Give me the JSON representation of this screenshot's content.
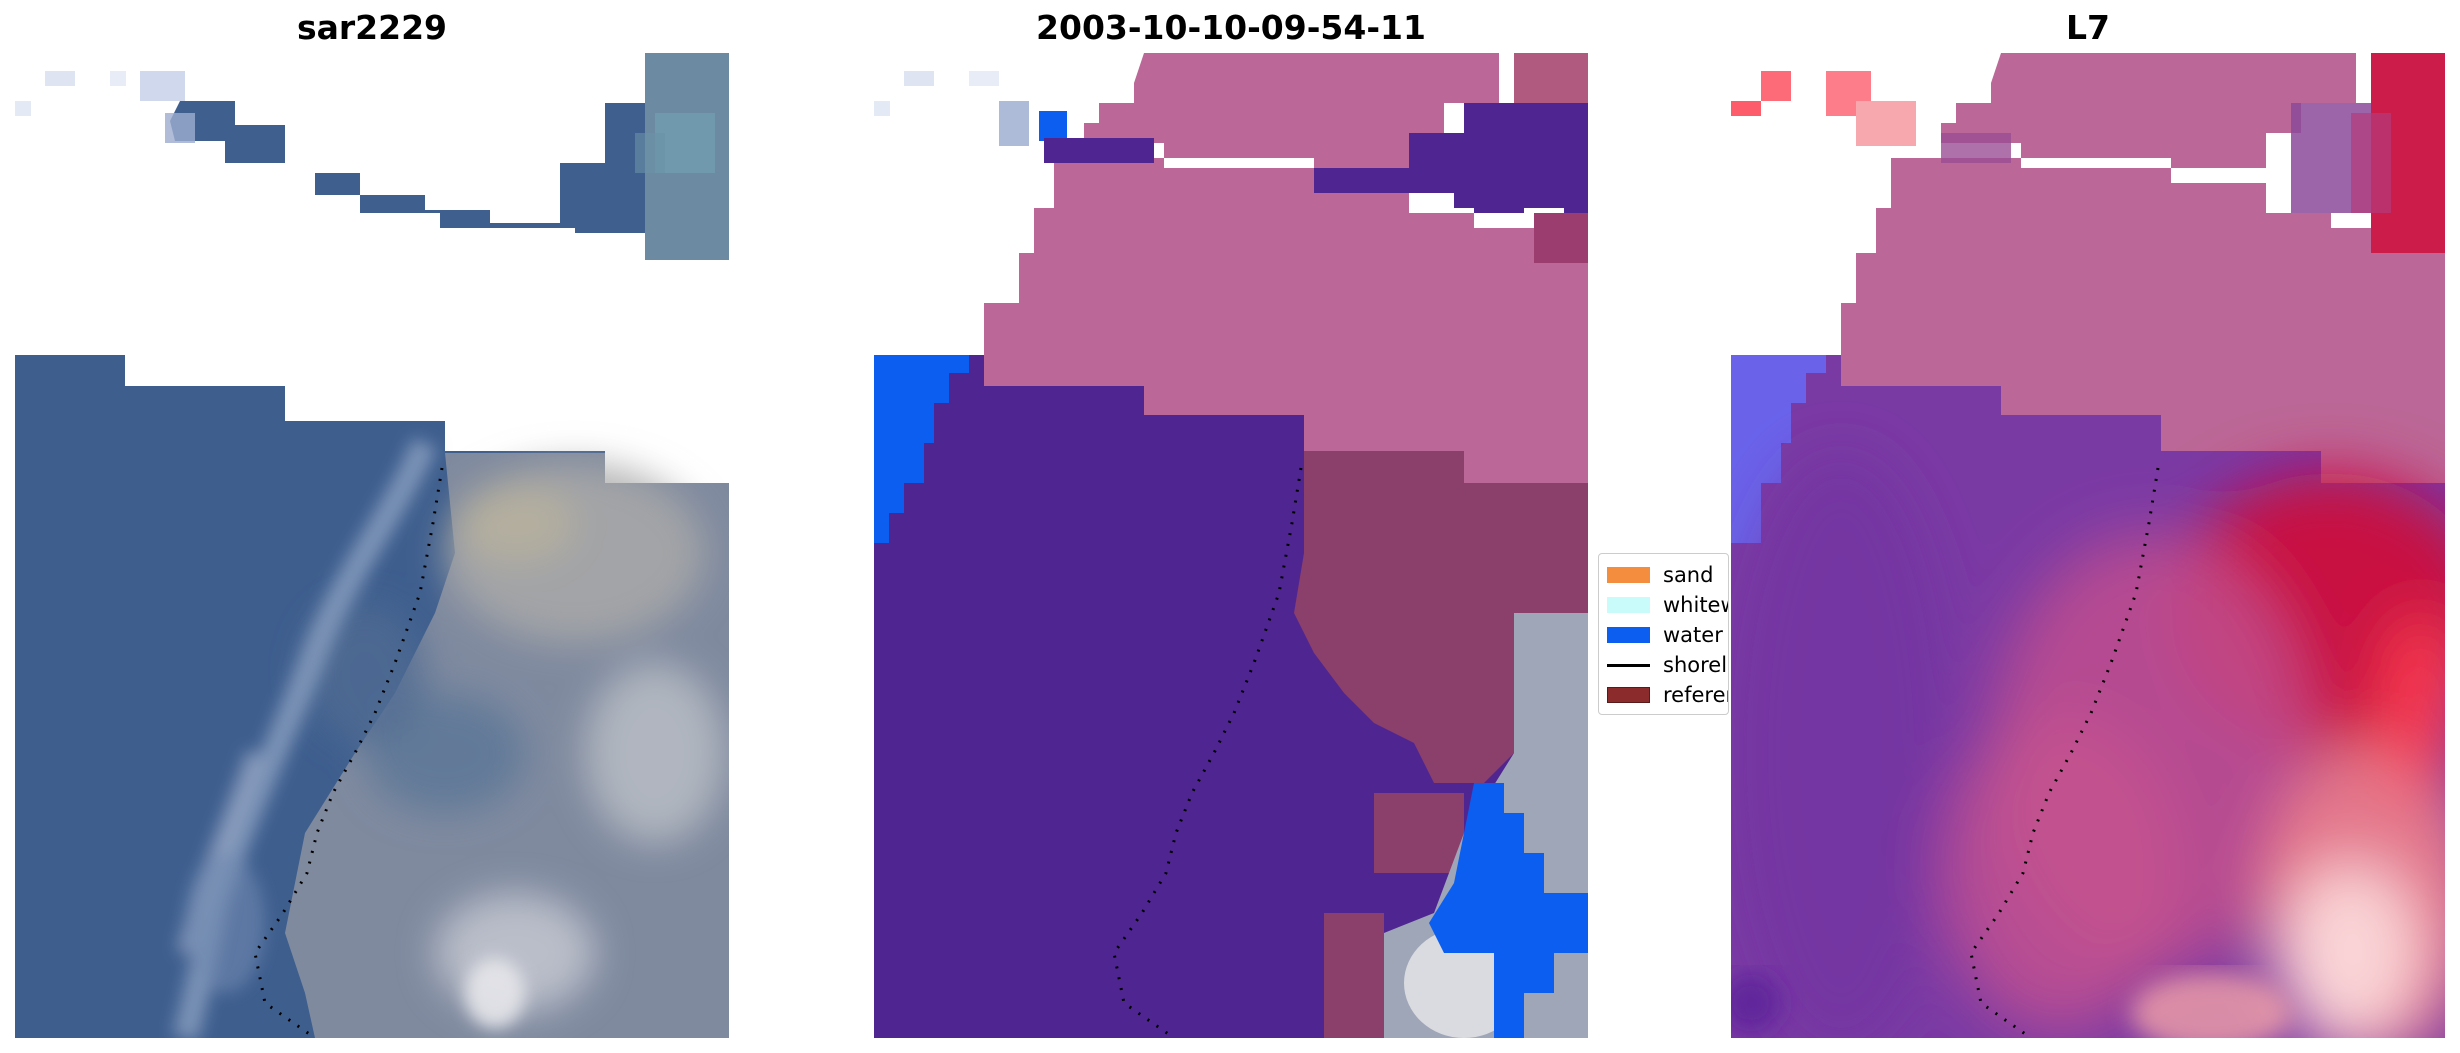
{
  "panels": {
    "left": {
      "title": "sar2229"
    },
    "middle": {
      "title": "2003-10-10-09-54-11"
    },
    "right": {
      "title": "L7"
    }
  },
  "legend": {
    "items": [
      {
        "label": "sand",
        "color": "#f58d3f"
      },
      {
        "label": "whitewater",
        "color": "#c9fbfb"
      },
      {
        "label": "water",
        "color": "#0b5ef0"
      },
      {
        "label": "shoreline",
        "color": "#000000"
      },
      {
        "label": "reference",
        "color": "#8b2b2b"
      }
    ]
  },
  "colors": {
    "ocean": "#3e5e8e",
    "land": "#8f8f9d",
    "cloud_white": "#ffffff",
    "class_purple": "#4f2592",
    "class_pink": "#bb6797",
    "class_maroon": "#8b3f6b",
    "class_blue": "#0b5ef0",
    "map_red": "#cc0f3c",
    "map_violet": "#7a3aa4"
  },
  "images": [
    {
      "description-free": true,
      "icon": "satellite-rgb-image"
    },
    {
      "icon": "classification-overlay-image"
    },
    {
      "icon": "probability-map-image"
    }
  ]
}
